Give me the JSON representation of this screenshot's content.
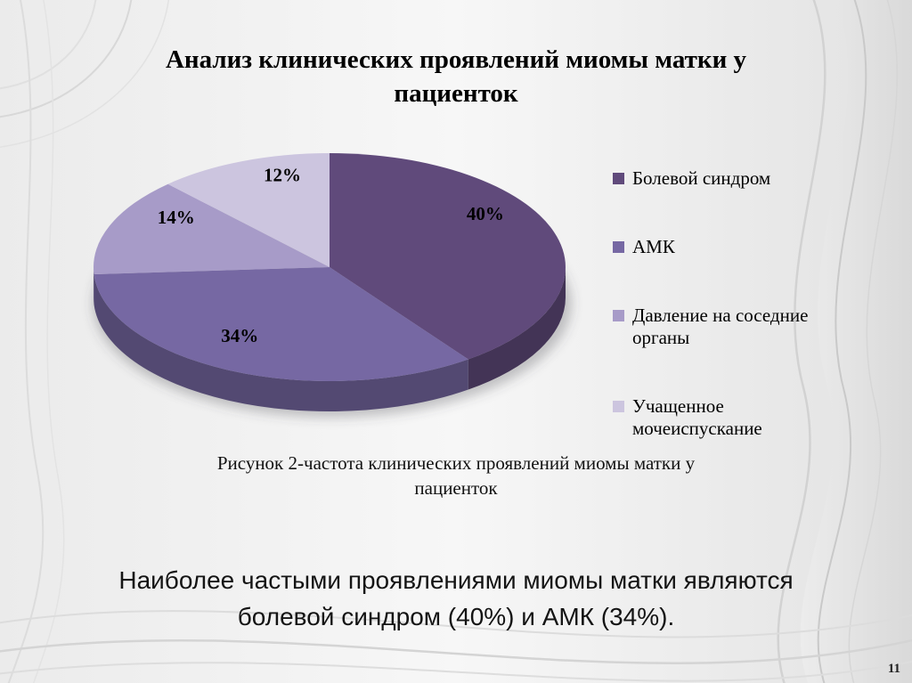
{
  "slide": {
    "title_lines": [
      "Анализ клинических проявлений миомы матки у",
      "пациенток"
    ],
    "caption_lines": [
      "Рисунок 2-частота клинических проявлений миомы матки у",
      "пациенток"
    ],
    "body_lines": [
      "Наиболее частыми проявлениями миомы матки являются",
      "болевой синдром (40%) и АМК (34%)."
    ],
    "page_number": "11"
  },
  "chart_data": {
    "type": "pie",
    "title": "Анализ клинических проявлений миомы матки у пациенток",
    "labels": [
      "Болевой синдром",
      "АМК",
      "Давление на соседние органы",
      "Учащенное мочеиспускание"
    ],
    "values": [
      40,
      34,
      14,
      12
    ],
    "data_labels": [
      "40%",
      "34%",
      "14%",
      "12%"
    ],
    "colors": [
      "#604a7b",
      "#7668a3",
      "#a79bc8",
      "#ccc5df"
    ],
    "start_angle_deg": -90,
    "direction": "clockwise",
    "effect": "3d",
    "legend_position": "right",
    "caption": "Рисунок 2-частота клинических проявлений миомы матки у пациенток"
  }
}
